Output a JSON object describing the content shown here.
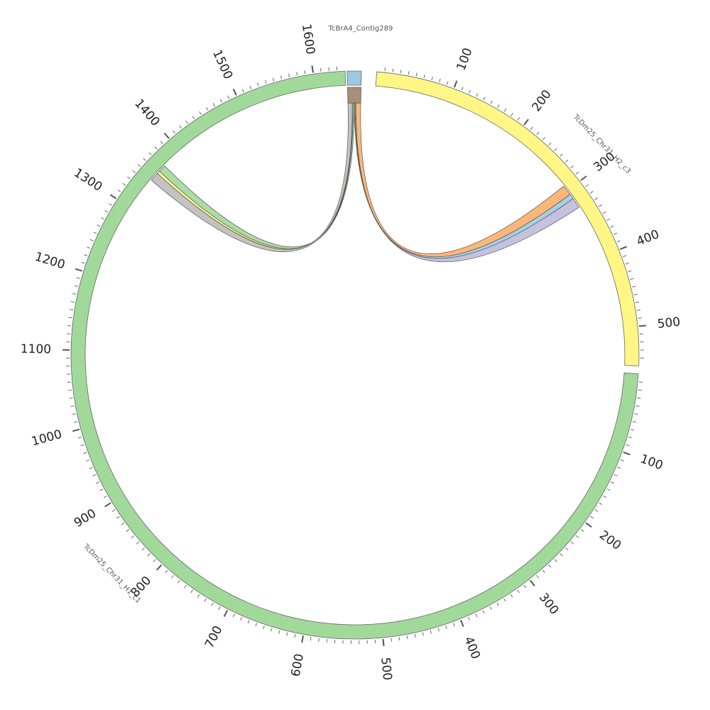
{
  "chart_data": {
    "type": "chord",
    "segments": [
      {
        "name": "TcBrA4_Contig289",
        "length": 18,
        "color": "#9ecae1",
        "tick_labels": []
      },
      {
        "name": "TcDm25_Chr31_H2_c3",
        "length": 550,
        "color": "#fff685",
        "tick_labels": [
          "100",
          "200",
          "300",
          "400",
          "500"
        ]
      },
      {
        "name": "TcDm25_Chr31_H1_c1",
        "length": 1640,
        "color": "#a1d99b",
        "tick_labels": [
          "100",
          "200",
          "300",
          "400",
          "500",
          "600",
          "700",
          "800",
          "900",
          "1000",
          "1100",
          "1200",
          "1300",
          "1400",
          "1500",
          "1600"
        ]
      }
    ],
    "links": [
      {
        "source": {
          "segment": "TcBrA4_Contig289",
          "start": 11,
          "end": 18
        },
        "target": {
          "segment": "TcDm25_Chr31_H2_c3",
          "start": 292,
          "end": 306
        },
        "color": "#fdae6b"
      },
      {
        "source": {
          "segment": "TcBrA4_Contig289",
          "start": 10,
          "end": 11
        },
        "target": {
          "segment": "TcDm25_Chr31_H2_c3",
          "start": 306,
          "end": 313
        },
        "color": "#9ecae1"
      },
      {
        "source": {
          "segment": "TcBrA4_Contig289",
          "start": 9,
          "end": 10
        },
        "target": {
          "segment": "TcDm25_Chr31_H2_c3",
          "start": 313,
          "end": 327
        },
        "color": "#bcbddc"
      },
      {
        "source": {
          "segment": "TcBrA4_Contig289",
          "start": 7,
          "end": 9
        },
        "target": {
          "segment": "TcDm25_Chr31_H1_c1",
          "start": 1362,
          "end": 1372
        },
        "color": "#a1d99b"
      },
      {
        "source": {
          "segment": "TcBrA4_Contig289",
          "start": 6,
          "end": 7
        },
        "target": {
          "segment": "TcDm25_Chr31_H1_c1",
          "start": 1358,
          "end": 1362
        },
        "color": "#fff685"
      },
      {
        "source": {
          "segment": "TcBrA4_Contig289",
          "start": 0,
          "end": 6
        },
        "target": {
          "segment": "TcDm25_Chr31_H1_c1",
          "start": 1346,
          "end": 1358
        },
        "color": "#bdbdbd"
      }
    ],
    "inner_ring_color": "#a78f77"
  }
}
